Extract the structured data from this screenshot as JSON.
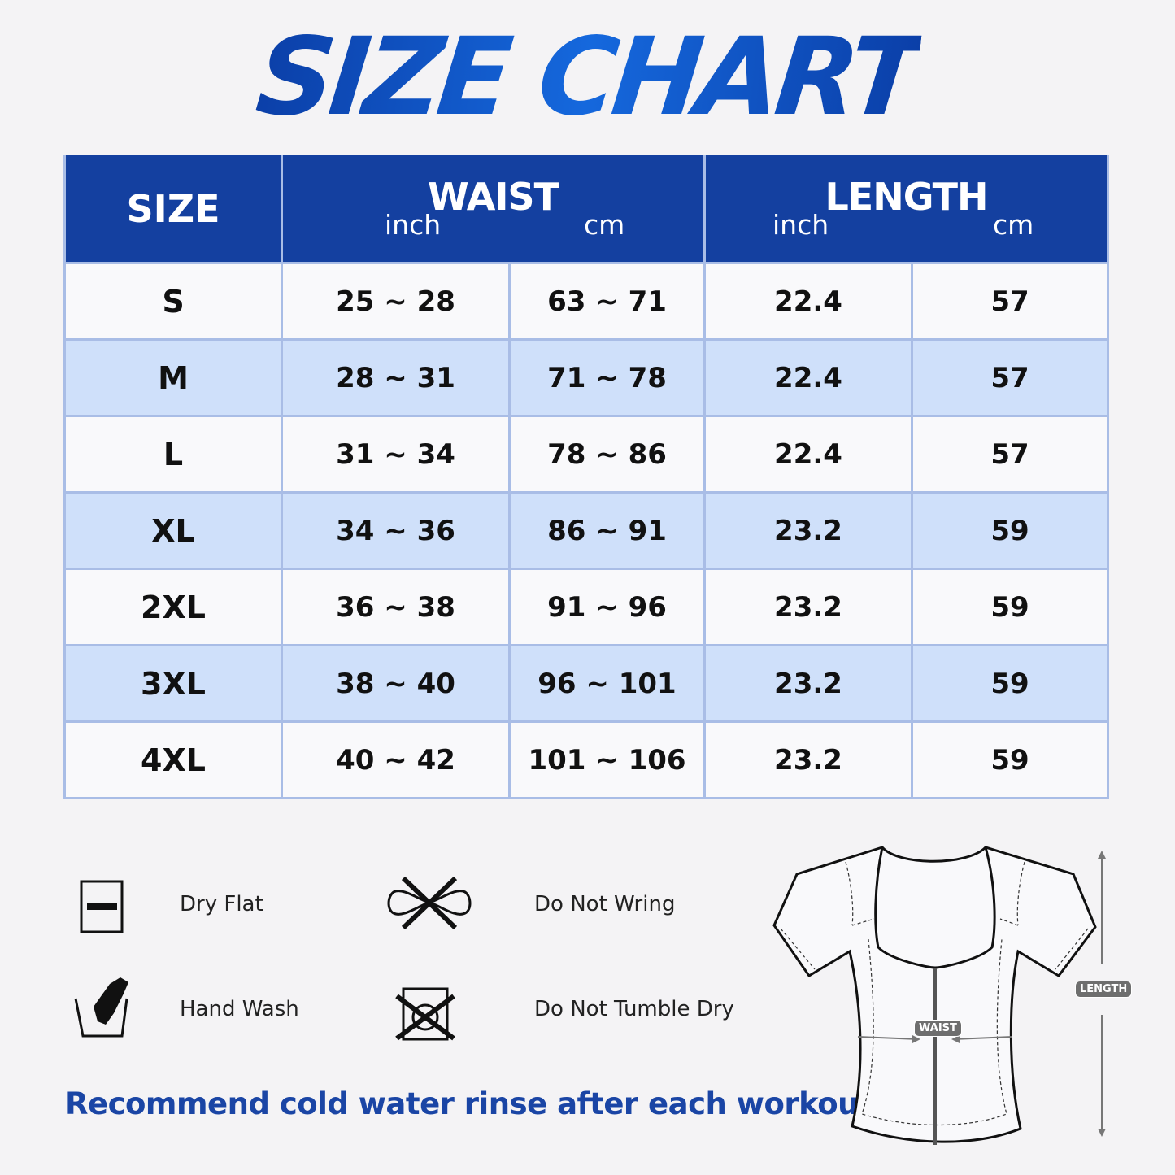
{
  "title": "SIZE CHART",
  "colors": {
    "header_bg": "#1440a0",
    "alt_row": "#cfe0fa",
    "border": "#a9bde6",
    "accent": "#1a45a5"
  },
  "table": {
    "headers": {
      "size": "SIZE",
      "waist": "WAIST",
      "length": "LENGTH",
      "inch": "inch",
      "cm": "cm"
    },
    "rows": [
      {
        "size": "S",
        "waist_inch": "25 ~ 28",
        "waist_cm": "63 ~ 71",
        "length_inch": "22.4",
        "length_cm": "57"
      },
      {
        "size": "M",
        "waist_inch": "28 ~ 31",
        "waist_cm": "71 ~ 78",
        "length_inch": "22.4",
        "length_cm": "57"
      },
      {
        "size": "L",
        "waist_inch": "31 ~ 34",
        "waist_cm": "78 ~ 86",
        "length_inch": "22.4",
        "length_cm": "57"
      },
      {
        "size": "XL",
        "waist_inch": "34 ~ 36",
        "waist_cm": "86 ~ 91",
        "length_inch": "23.2",
        "length_cm": "59"
      },
      {
        "size": "2XL",
        "waist_inch": "36 ~ 38",
        "waist_cm": "91 ~ 96",
        "length_inch": "23.2",
        "length_cm": "59"
      },
      {
        "size": "3XL",
        "waist_inch": "38 ~ 40",
        "waist_cm": "96 ~ 101",
        "length_inch": "23.2",
        "length_cm": "59"
      },
      {
        "size": "4XL",
        "waist_inch": "40 ~ 42",
        "waist_cm": "101 ~ 106",
        "length_inch": "23.2",
        "length_cm": "59"
      }
    ]
  },
  "care": [
    {
      "icon": "dry-flat-icon",
      "label": "Dry Flat"
    },
    {
      "icon": "do-not-wring-icon",
      "label": "Do Not Wring"
    },
    {
      "icon": "hand-wash-icon",
      "label": "Hand Wash"
    },
    {
      "icon": "do-not-tumble-dry-icon",
      "label": "Do Not Tumble Dry"
    }
  ],
  "note": "Recommend cold water rinse after each workout.",
  "diagram": {
    "waist_label": "WAIST",
    "length_label": "LENGTH"
  }
}
